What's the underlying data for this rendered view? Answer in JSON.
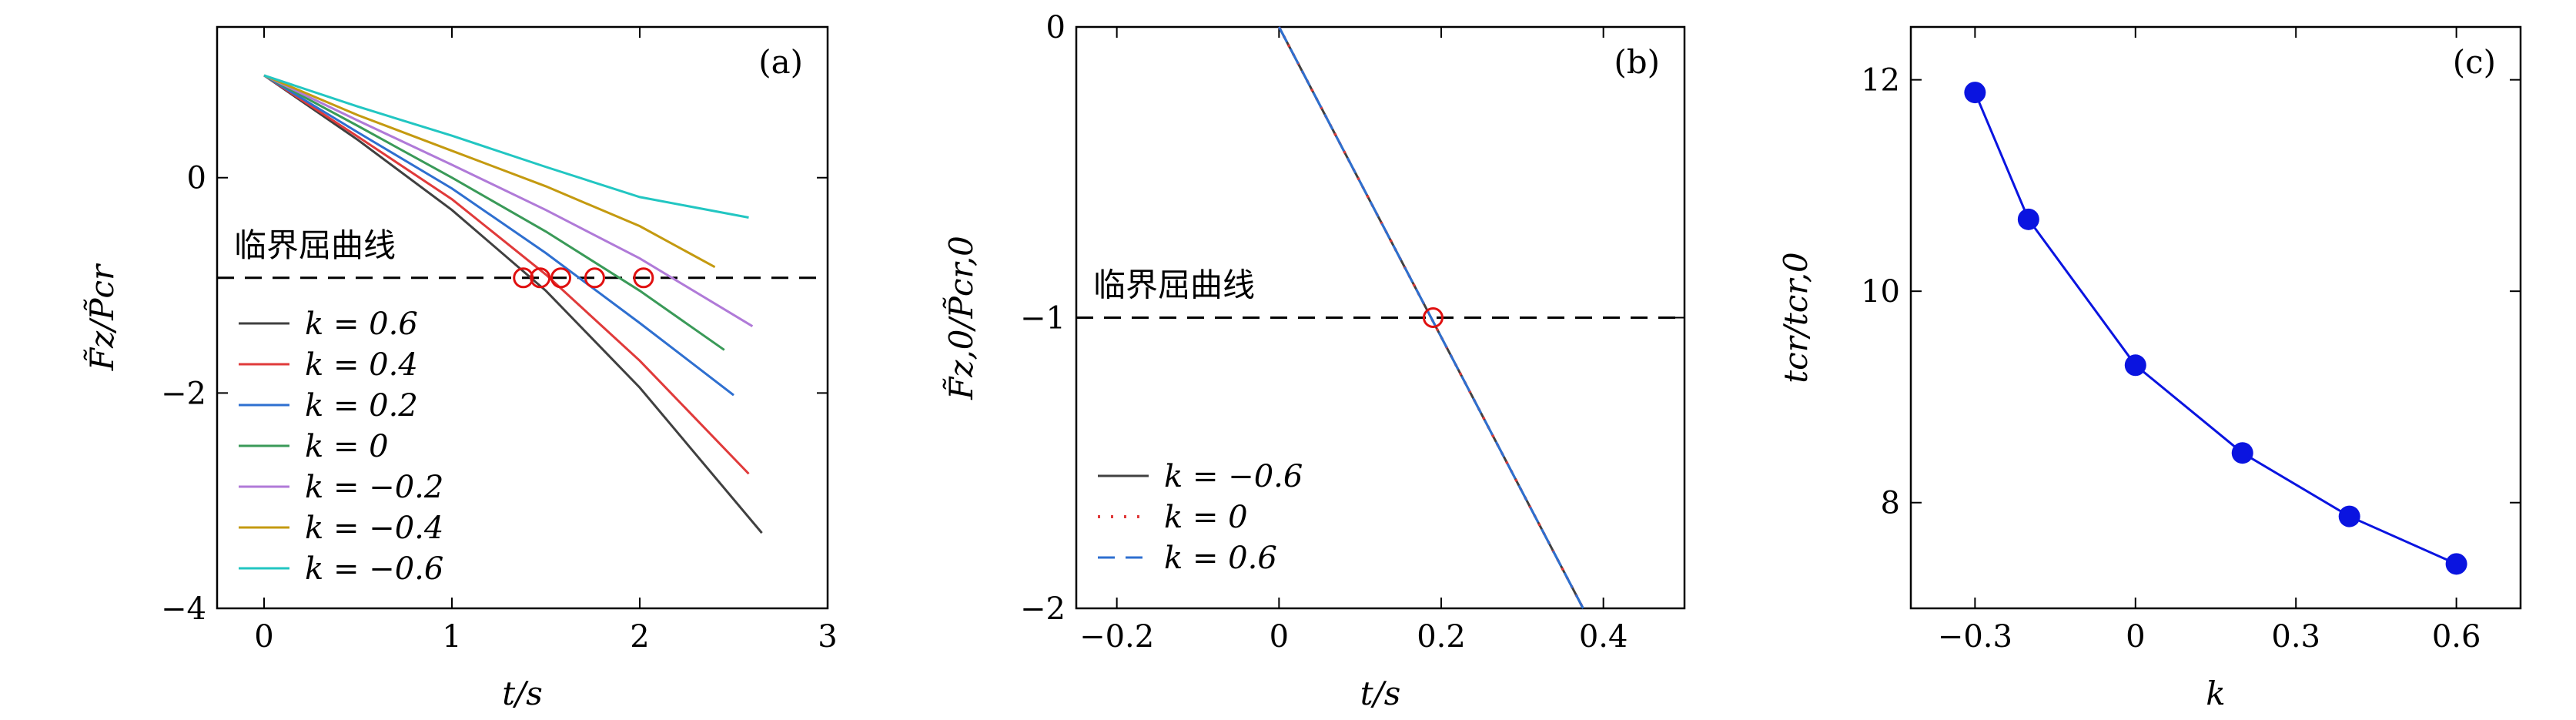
{
  "chart_data": [
    {
      "panel": "(a)",
      "type": "line",
      "xlabel": "t/s",
      "ylabel": "F̃z/P̃cr",
      "xlim": [
        -0.25,
        3
      ],
      "ylim": [
        -4,
        1.4
      ],
      "xticks": [
        0,
        1,
        2,
        3
      ],
      "xtick_labels": [
        "0",
        "1",
        "2",
        "3"
      ],
      "yticks": [
        0,
        -2,
        -4
      ],
      "ytick_labels": [
        "0",
        "−2",
        "−4"
      ],
      "legend_position": "lower-left",
      "reference_line": {
        "y": -0.93,
        "style": "dashed",
        "color": "#000000",
        "label": "临界屈曲线"
      },
      "series": [
        {
          "name": "k = 0.6",
          "color": "#404040",
          "x": [
            0,
            0.5,
            1.0,
            1.5,
            2.0,
            2.65
          ],
          "y": [
            0.95,
            0.35,
            -0.3,
            -1.05,
            -1.95,
            -3.3
          ]
        },
        {
          "name": "k = 0.4",
          "color": "#e03a3a",
          "x": [
            0,
            0.5,
            1.0,
            1.5,
            2.0,
            2.58
          ],
          "y": [
            0.95,
            0.38,
            -0.2,
            -0.9,
            -1.7,
            -2.75
          ]
        },
        {
          "name": "k = 0.2",
          "color": "#2e6fd0",
          "x": [
            0,
            0.5,
            1.0,
            1.5,
            2.0,
            2.5
          ],
          "y": [
            0.95,
            0.42,
            -0.1,
            -0.7,
            -1.35,
            -2.02
          ]
        },
        {
          "name": "k = 0",
          "color": "#3a9a58",
          "x": [
            0,
            0.5,
            1.0,
            1.5,
            2.0,
            2.45
          ],
          "y": [
            0.95,
            0.48,
            0.0,
            -0.5,
            -1.05,
            -1.6
          ]
        },
        {
          "name": "k = −0.2",
          "color": "#b07ad8",
          "x": [
            0,
            0.5,
            1.0,
            1.5,
            2.0,
            2.6
          ],
          "y": [
            0.95,
            0.53,
            0.12,
            -0.3,
            -0.75,
            -1.38
          ]
        },
        {
          "name": "k = −0.4",
          "color": "#c49a10",
          "x": [
            0,
            0.5,
            1.0,
            1.5,
            2.0,
            2.4
          ],
          "y": [
            0.95,
            0.58,
            0.25,
            -0.08,
            -0.45,
            -0.83
          ]
        },
        {
          "name": "k = −0.6",
          "color": "#22c6c2",
          "x": [
            0,
            0.5,
            1.0,
            1.5,
            2.0,
            2.58
          ],
          "y": [
            0.95,
            0.66,
            0.39,
            0.1,
            -0.18,
            -0.37
          ]
        }
      ],
      "markers": {
        "color": "#e01010",
        "x": [
          1.38,
          1.47,
          1.58,
          1.76,
          2.02
        ],
        "y": [
          -0.93,
          -0.93,
          -0.93,
          -0.93,
          -0.93
        ]
      }
    },
    {
      "panel": "(b)",
      "type": "line",
      "xlabel": "t/s",
      "ylabel": "F̃z,0/P̃cr,0",
      "xlim": [
        -0.25,
        0.5
      ],
      "ylim": [
        -2,
        0
      ],
      "xticks": [
        -0.2,
        0,
        0.2,
        0.4
      ],
      "xtick_labels": [
        "−0.2",
        "0",
        "0.2",
        "0.4"
      ],
      "yticks": [
        0,
        -1,
        -2
      ],
      "ytick_labels": [
        "0",
        "−1",
        "−2"
      ],
      "legend_position": "lower-left",
      "reference_line": {
        "y": -1,
        "style": "dashed",
        "color": "#000000",
        "label": "临界屈曲线"
      },
      "series": [
        {
          "name": "k = −0.6",
          "color": "#404040",
          "style": "solid",
          "x": [
            0,
            0.375
          ],
          "y": [
            0,
            -2
          ]
        },
        {
          "name": "k = 0",
          "color": "#e03a3a",
          "style": "dotted",
          "x": [
            0,
            0.375
          ],
          "y": [
            0,
            -2
          ]
        },
        {
          "name": "k = 0.6",
          "color": "#2e6fd0",
          "style": "dashed",
          "x": [
            0,
            0.375
          ],
          "y": [
            0,
            -2
          ]
        }
      ],
      "markers": {
        "color": "#e01010",
        "x": [
          0.19
        ],
        "y": [
          -1
        ]
      }
    },
    {
      "panel": "(c)",
      "type": "line",
      "xlabel": "k",
      "ylabel": "tcr/tcr,0",
      "xlim": [
        -0.42,
        0.72
      ],
      "ylim": [
        7,
        12.5
      ],
      "xticks": [
        -0.3,
        0,
        0.3,
        0.6
      ],
      "xtick_labels": [
        "−0.3",
        "0",
        "0.3",
        "0.6"
      ],
      "yticks": [
        8,
        10,
        12
      ],
      "ytick_labels": [
        "8",
        "10",
        "12"
      ],
      "series": [
        {
          "color": "#0a14e0",
          "x": [
            -0.3,
            -0.2,
            0,
            0.2,
            0.4,
            0.6
          ],
          "y": [
            11.88,
            10.68,
            9.3,
            8.47,
            7.87,
            7.42
          ]
        }
      ]
    }
  ],
  "annotations": {
    "label_a": "(a)",
    "label_b": "(b)",
    "label_c": "(c)",
    "critical_line_a": "临界屈曲线",
    "critical_line_b": "临界屈曲线"
  }
}
